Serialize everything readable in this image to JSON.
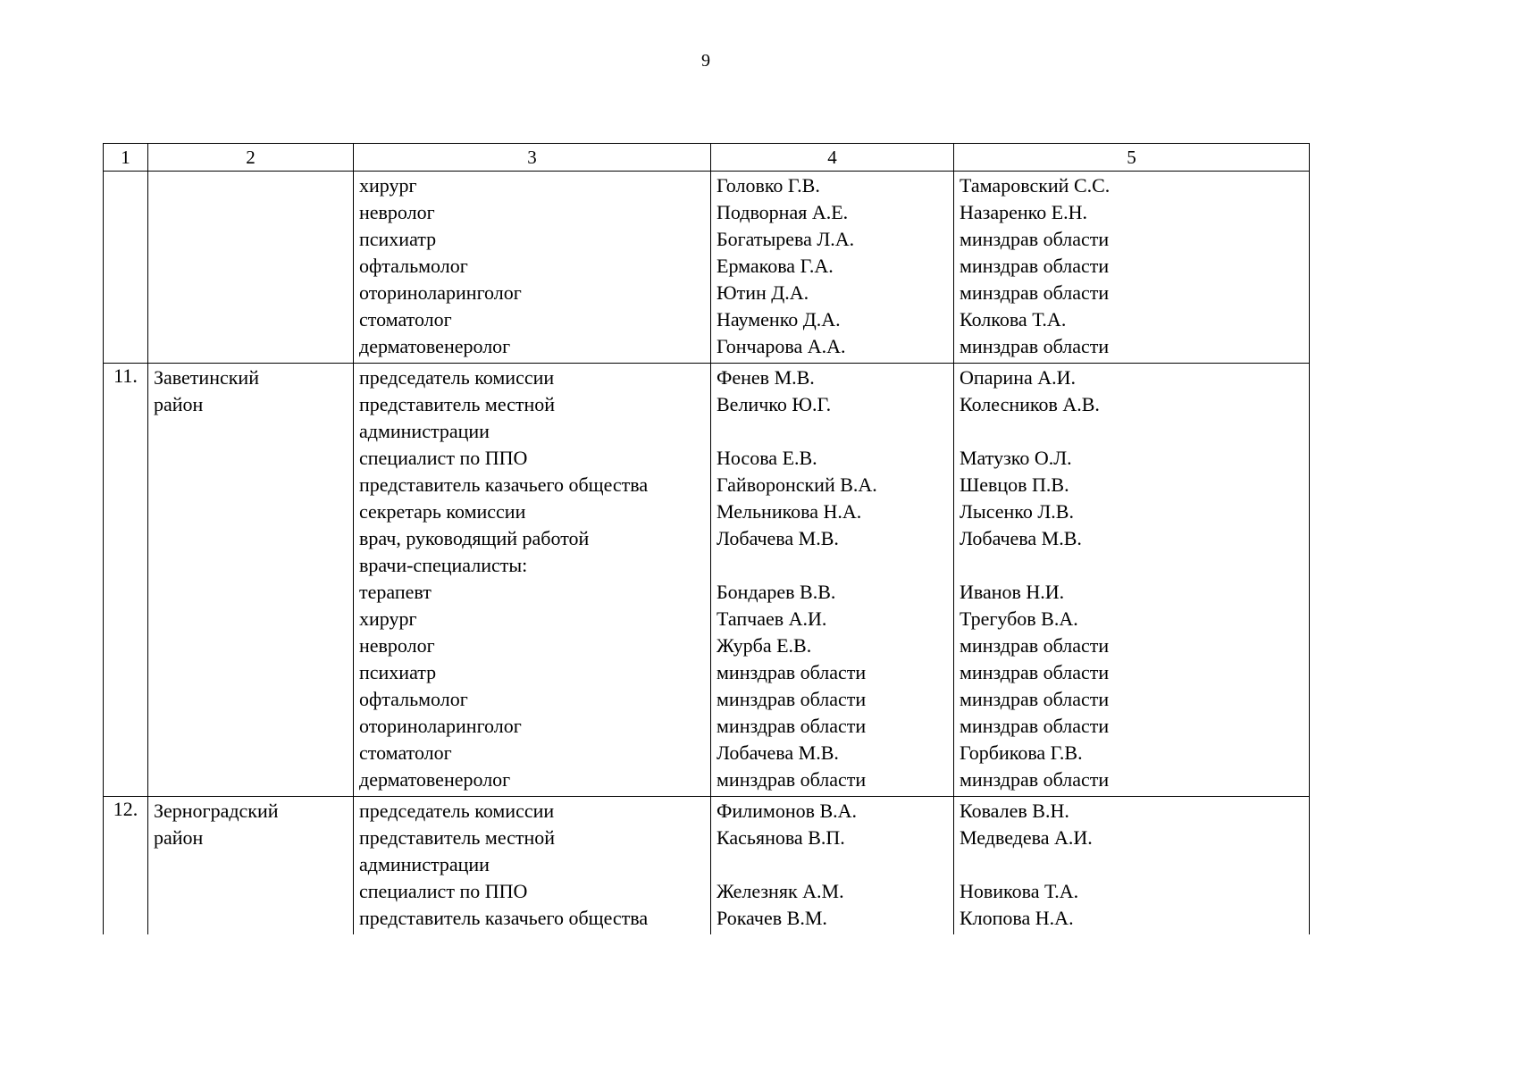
{
  "page": {
    "number": "9"
  },
  "table": {
    "column_headers": [
      "1",
      "2",
      "3",
      "4",
      "5"
    ],
    "rows": [
      {
        "num": "",
        "district_lines": [],
        "lines": [
          {
            "role": "хирург",
            "member": "Головко Г.В.",
            "appointed_by": "Тамаровский С.С."
          },
          {
            "role": "невролог",
            "member": "Подворная А.Е.",
            "appointed_by": "Назаренко Е.Н."
          },
          {
            "role": "психиатр",
            "member": "Богатырева Л.А.",
            "appointed_by": "минздрав области"
          },
          {
            "role": "офтальмолог",
            "member": "Ермакова Г.А.",
            "appointed_by": "минздрав области"
          },
          {
            "role": "оториноларинголог",
            "member": "Ютин Д.А.",
            "appointed_by": "минздрав области"
          },
          {
            "role": "стоматолог",
            "member": "Науменко Д.А.",
            "appointed_by": "Колкова Т.А."
          },
          {
            "role": "дерматовенеролог",
            "member": "Гончарова А.А.",
            "appointed_by": "минздрав области"
          }
        ]
      },
      {
        "num": "11.",
        "district_lines": [
          "Заветинский",
          "район"
        ],
        "lines": [
          {
            "role": "председатель комиссии",
            "member": "Фенев М.В.",
            "appointed_by": "Опарина А.И."
          },
          {
            "role": "представитель местной",
            "member": "Величко Ю.Г.",
            "appointed_by": "Колесников А.В."
          },
          {
            "role": "администрации",
            "member": "",
            "appointed_by": ""
          },
          {
            "role": "специалист по ППО",
            "member": "Носова Е.В.",
            "appointed_by": "Матузко О.Л."
          },
          {
            "role": "представитель казачьего общества",
            "member": "Гайворонский В.А.",
            "appointed_by": "Шевцов П.В."
          },
          {
            "role": "секретарь комиссии",
            "member": "Мельникова Н.А.",
            "appointed_by": "Лысенко Л.В."
          },
          {
            "role": "врач, руководящий работой",
            "member": "Лобачева М.В.",
            "appointed_by": "Лобачева М.В."
          },
          {
            "role": "врачи-специалисты:",
            "member": "",
            "appointed_by": ""
          },
          {
            "role": "терапевт",
            "member": "Бондарев В.В.",
            "appointed_by": "Иванов Н.И."
          },
          {
            "role": "хирург",
            "member": "Тапчаев А.И.",
            "appointed_by": "Трегубов В.А."
          },
          {
            "role": "невролог",
            "member": "Журба Е.В.",
            "appointed_by": "минздрав области"
          },
          {
            "role": "психиатр",
            "member": "минздрав области",
            "appointed_by": "минздрав области"
          },
          {
            "role": "офтальмолог",
            "member": "минздрав области",
            "appointed_by": "минздрав области"
          },
          {
            "role": "оториноларинголог",
            "member": "минздрав области",
            "appointed_by": "минздрав области"
          },
          {
            "role": "стоматолог",
            "member": "Лобачева М.В.",
            "appointed_by": "Горбикова Г.В."
          },
          {
            "role": "дерматовенеролог",
            "member": "минздрав области",
            "appointed_by": "минздрав области"
          }
        ]
      },
      {
        "num": "12.",
        "district_lines": [
          "Зерноградский",
          "район"
        ],
        "lines": [
          {
            "role": "председатель комиссии",
            "member": "Филимонов В.А.",
            "appointed_by": "Ковалев В.Н."
          },
          {
            "role": "представитель местной",
            "member": "Касьянова В.П.",
            "appointed_by": "Медведева А.И."
          },
          {
            "role": "администрации",
            "member": "",
            "appointed_by": ""
          },
          {
            "role": "специалист по ППО",
            "member": "Железняк А.М.",
            "appointed_by": "Новикова Т.А."
          },
          {
            "role": "представитель казачьего общества",
            "member": "Рокачев В.М.",
            "appointed_by": "Клопова Н.А."
          }
        ]
      }
    ]
  }
}
